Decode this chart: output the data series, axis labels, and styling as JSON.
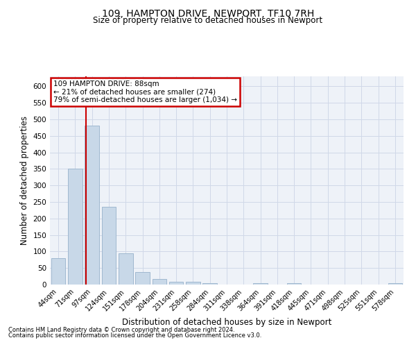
{
  "title1": "109, HAMPTON DRIVE, NEWPORT, TF10 7RH",
  "title2": "Size of property relative to detached houses in Newport",
  "xlabel": "Distribution of detached houses by size in Newport",
  "ylabel": "Number of detached properties",
  "categories": [
    "44sqm",
    "71sqm",
    "97sqm",
    "124sqm",
    "151sqm",
    "178sqm",
    "204sqm",
    "231sqm",
    "258sqm",
    "284sqm",
    "311sqm",
    "338sqm",
    "364sqm",
    "391sqm",
    "418sqm",
    "445sqm",
    "471sqm",
    "498sqm",
    "525sqm",
    "551sqm",
    "578sqm"
  ],
  "values": [
    80,
    350,
    480,
    235,
    95,
    37,
    17,
    8,
    8,
    5,
    0,
    0,
    5,
    0,
    5,
    0,
    0,
    0,
    0,
    0,
    5
  ],
  "bar_color": "#c8d8e8",
  "bar_edgecolor": "#a0b8d0",
  "vline_x_idx": 1.63,
  "vline_color": "#cc0000",
  "annotation_line1": "109 HAMPTON DRIVE: 88sqm",
  "annotation_line2": "← 21% of detached houses are smaller (274)",
  "annotation_line3": "79% of semi-detached houses are larger (1,034) →",
  "ylim": [
    0,
    630
  ],
  "yticks": [
    0,
    50,
    100,
    150,
    200,
    250,
    300,
    350,
    400,
    450,
    500,
    550,
    600
  ],
  "grid_color": "#d0d8e8",
  "background_color": "#eef2f8",
  "footnote1": "Contains HM Land Registry data © Crown copyright and database right 2024.",
  "footnote2": "Contains public sector information licensed under the Open Government Licence v3.0."
}
